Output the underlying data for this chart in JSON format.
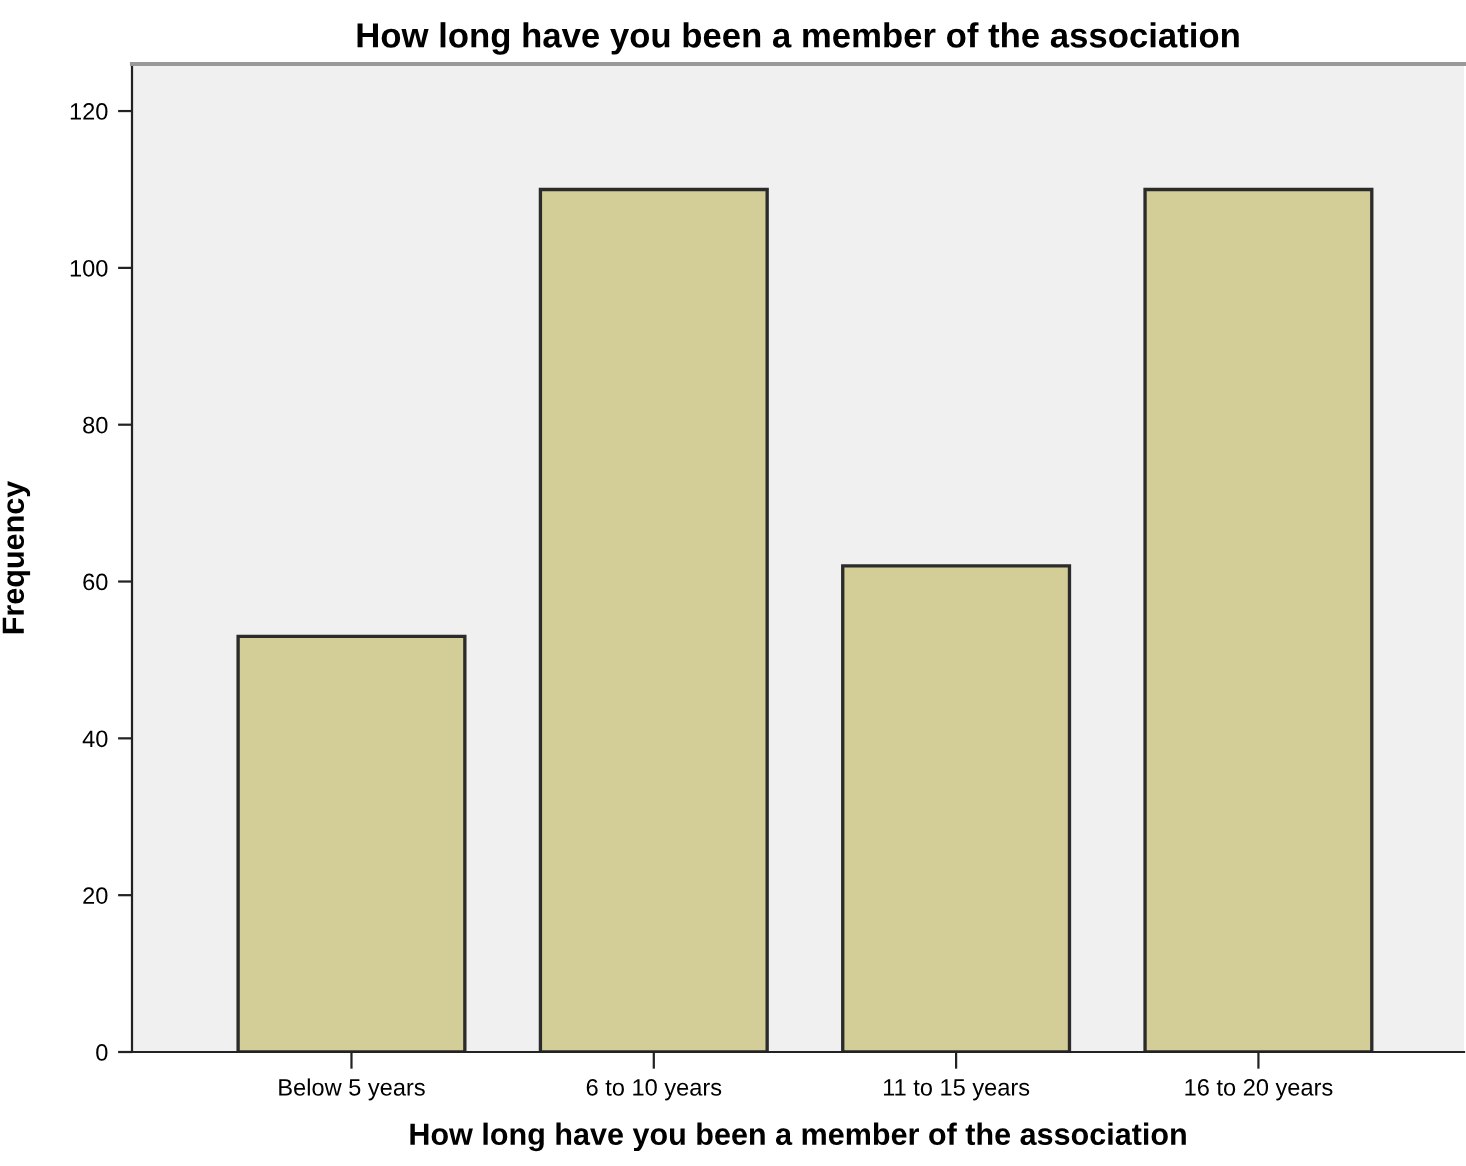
{
  "chart_data": {
    "type": "bar",
    "title": "How long have you been a member of the association",
    "xlabel": "How long have you been a member of the association",
    "ylabel": "Frequency",
    "categories": [
      "Below 5 years",
      "6 to 10 years",
      "11 to 15 years",
      "16 to 20 years"
    ],
    "values": [
      53,
      110,
      62,
      110
    ],
    "color": "#d3ce97",
    "ylim": [
      0,
      126
    ],
    "yticks": [
      0,
      20,
      40,
      60,
      80,
      100,
      120
    ],
    "grid": false,
    "legend": false
  }
}
